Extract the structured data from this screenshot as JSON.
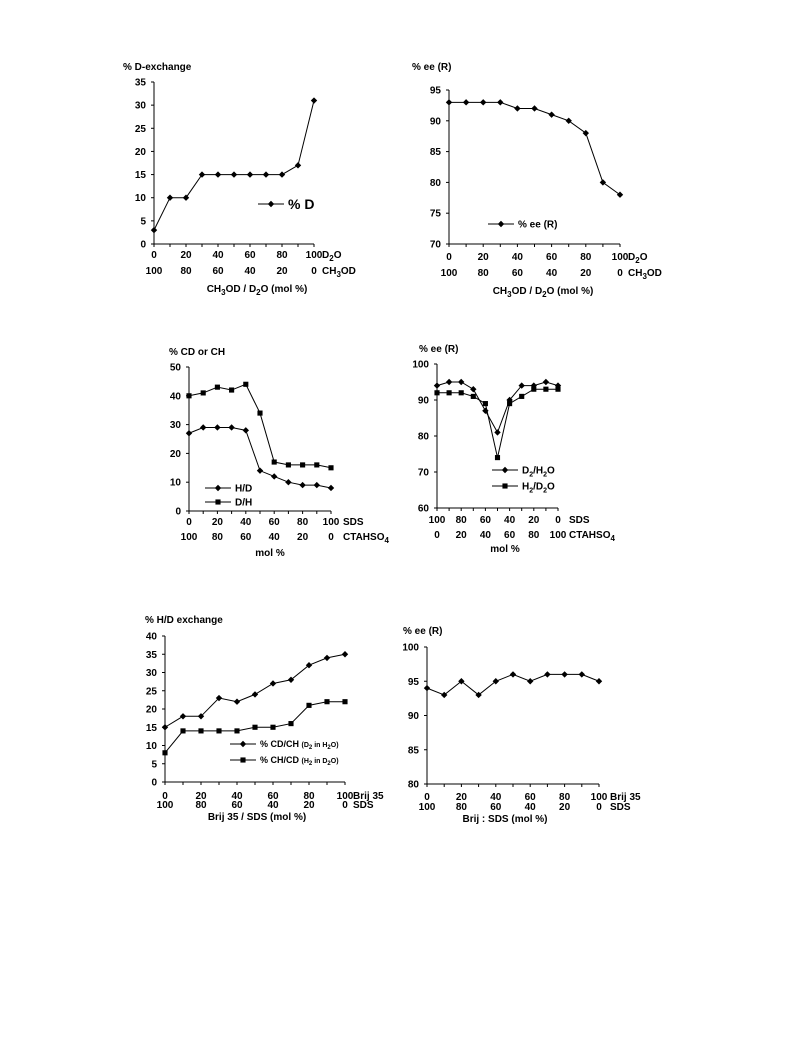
{
  "chart_data": [
    {
      "type": "line",
      "ylabel": "% D-exchange",
      "ylim": [
        0,
        35
      ],
      "yticks": [
        "0",
        "5",
        "10",
        "15",
        "20",
        "25",
        "30",
        "35"
      ],
      "x": [
        0,
        10,
        20,
        30,
        40,
        50,
        60,
        70,
        80,
        90,
        100
      ],
      "xaxis_rows": [
        {
          "ticks": [
            "0",
            "20",
            "40",
            "60",
            "80",
            "100"
          ],
          "name_html": "D<tspan font-size='8' dy='3'>2</tspan><tspan dy='-3'>O</tspan>"
        },
        {
          "ticks": [
            "100",
            "80",
            "60",
            "40",
            "20",
            "0"
          ],
          "name_html": "CH<tspan font-size='8' dy='3'>3</tspan><tspan dy='-3'>OD</tspan>"
        }
      ],
      "xlabel_html": "CH<tspan font-size='8' dy='3'>3</tspan><tspan dy='-3'>OD / D</tspan><tspan font-size='8' dy='3'>2</tspan><tspan dy='-3'>O (mol %)</tspan>",
      "series": [
        {
          "name": "% D",
          "marker": "diamond",
          "values": [
            3,
            10,
            10,
            15,
            15,
            15,
            15,
            15,
            15,
            17,
            31
          ]
        }
      ],
      "legend_position": "center-right"
    },
    {
      "type": "line",
      "ylabel": "% ee (R)",
      "ylim": [
        70,
        95
      ],
      "yticks": [
        "70",
        "75",
        "80",
        "85",
        "90",
        "95"
      ],
      "x": [
        0,
        10,
        20,
        30,
        40,
        50,
        60,
        70,
        80,
        90,
        100
      ],
      "xaxis_rows": [
        {
          "ticks": [
            "0",
            "20",
            "40",
            "60",
            "80",
            "100"
          ],
          "name_html": "D<tspan font-size='8' dy='3'>2</tspan><tspan dy='-3'>O</tspan>"
        },
        {
          "ticks": [
            "100",
            "80",
            "60",
            "40",
            "20",
            "0"
          ],
          "name_html": "CH<tspan font-size='8' dy='3'>3</tspan><tspan dy='-3'>OD</tspan>"
        }
      ],
      "xlabel_html": "CH<tspan font-size='8' dy='3'>3</tspan><tspan dy='-3'>OD / D</tspan><tspan font-size='8' dy='3'>2</tspan><tspan dy='-3'>O (mol %)</tspan>",
      "series": [
        {
          "name": "% ee (R)",
          "marker": "diamond",
          "values": [
            93,
            93,
            93,
            93,
            92,
            92,
            91,
            90,
            88,
            80,
            78
          ]
        }
      ],
      "legend_position": "bottom-center"
    },
    {
      "type": "line",
      "ylabel": "% CD or CH",
      "ylim": [
        0,
        50
      ],
      "yticks": [
        "0",
        "10",
        "20",
        "30",
        "40",
        "50"
      ],
      "x": [
        0,
        10,
        20,
        30,
        40,
        50,
        60,
        70,
        80,
        90,
        100
      ],
      "xaxis_rows": [
        {
          "ticks": [
            "0",
            "20",
            "40",
            "60",
            "80",
            "100"
          ],
          "name_html": "SDS"
        },
        {
          "ticks": [
            "100",
            "80",
            "60",
            "40",
            "20",
            "0"
          ],
          "name_html": "CTAHSO<tspan font-size='8' dy='3'>4</tspan>"
        }
      ],
      "xlabel_html": "mol %",
      "series": [
        {
          "name": "H/D",
          "marker": "diamond",
          "values": [
            27,
            29,
            29,
            29,
            28,
            14,
            12,
            10,
            9,
            9,
            8
          ]
        },
        {
          "name": "D/H",
          "marker": "square",
          "values": [
            40,
            41,
            43,
            42,
            44,
            34,
            17,
            16,
            16,
            16,
            15
          ]
        }
      ],
      "legend_position": "bottom-left"
    },
    {
      "type": "line",
      "ylabel": "% ee (R)",
      "ylim": [
        60,
        100
      ],
      "yticks": [
        "60",
        "70",
        "80",
        "90",
        "100"
      ],
      "x": [
        0,
        10,
        20,
        30,
        40,
        50,
        60,
        70,
        80,
        90,
        100
      ],
      "xaxis_rows": [
        {
          "ticks": [
            "100",
            "80",
            "60",
            "40",
            "20",
            "0"
          ],
          "name_html": "SDS"
        },
        {
          "ticks": [
            "0",
            "20",
            "40",
            "60",
            "80",
            "100"
          ],
          "name_html": "CTAHSO<tspan font-size='8' dy='3'>4</tspan>"
        }
      ],
      "xlabel_html": "mol %",
      "series": [
        {
          "name_html": "D<tspan font-size='7' dy='3'>2</tspan><tspan dy='-3'>/H</tspan><tspan font-size='7' dy='3'>2</tspan><tspan dy='-3'>O</tspan>",
          "marker": "diamond",
          "values": [
            94,
            95,
            95,
            93,
            87,
            81,
            90,
            94,
            94,
            95,
            94
          ]
        },
        {
          "name_html": "H<tspan font-size='7' dy='3'>2</tspan><tspan dy='-3'>/D</tspan><tspan font-size='7' dy='3'>2</tspan><tspan dy='-3'>O</tspan>",
          "marker": "square",
          "values": [
            92,
            92,
            92,
            91,
            89,
            74,
            89,
            91,
            93,
            93,
            93
          ]
        }
      ],
      "legend_position": "bottom-right"
    },
    {
      "type": "line",
      "ylabel": "% H/D exchange",
      "ylim": [
        0,
        40
      ],
      "yticks": [
        "0",
        "5",
        "10",
        "15",
        "20",
        "25",
        "30",
        "35",
        "40"
      ],
      "x": [
        0,
        10,
        20,
        30,
        40,
        50,
        60,
        70,
        80,
        90,
        100
      ],
      "xaxis_rows": [
        {
          "ticks": [
            "0",
            "20",
            "40",
            "60",
            "80",
            "100"
          ],
          "name_html": "Brij 35"
        },
        {
          "ticks": [
            "100",
            "80",
            "60",
            "40",
            "20",
            "0"
          ],
          "name_html": "SDS"
        }
      ],
      "xlabel_html": "Brij 35 / SDS (mol %)",
      "series": [
        {
          "name_html": "% CD/CH <tspan font-size='7'>(D</tspan><tspan font-size='6' dy='2'>2</tspan><tspan font-size='7' dy='-2'> in H</tspan><tspan font-size='6' dy='2'>2</tspan><tspan font-size='7' dy='-2'>O)</tspan>",
          "marker": "diamond",
          "values": [
            15,
            18,
            18,
            23,
            22,
            24,
            27,
            28,
            32,
            34,
            35
          ]
        },
        {
          "name_html": "% CH/CD <tspan font-size='7'>(H</tspan><tspan font-size='6' dy='2'>2</tspan><tspan font-size='7' dy='-2'> in D</tspan><tspan font-size='6' dy='2'>2</tspan><tspan font-size='7' dy='-2'>O)</tspan>",
          "marker": "square",
          "values": [
            8,
            14,
            14,
            14,
            14,
            15,
            15,
            16,
            21,
            22,
            22
          ]
        }
      ],
      "legend_position": "bottom-center"
    },
    {
      "type": "line",
      "ylabel": "% ee (R)",
      "ylim": [
        80,
        100
      ],
      "yticks": [
        "80",
        "85",
        "90",
        "95",
        "100"
      ],
      "x": [
        0,
        10,
        20,
        30,
        40,
        50,
        60,
        70,
        80,
        90,
        100
      ],
      "xaxis_rows": [
        {
          "ticks": [
            "0",
            "20",
            "40",
            "60",
            "80",
            "100"
          ],
          "name_html": "Brij 35"
        },
        {
          "ticks": [
            "100",
            "80",
            "60",
            "40",
            "20",
            "0"
          ],
          "name_html": "SDS"
        }
      ],
      "xlabel_html": "Brij : SDS (mol %)",
      "series": [
        {
          "marker": "diamond",
          "values": [
            94,
            93,
            95,
            93,
            95,
            96,
            95,
            96,
            96,
            96,
            95
          ]
        }
      ],
      "legend_position": "none"
    }
  ]
}
